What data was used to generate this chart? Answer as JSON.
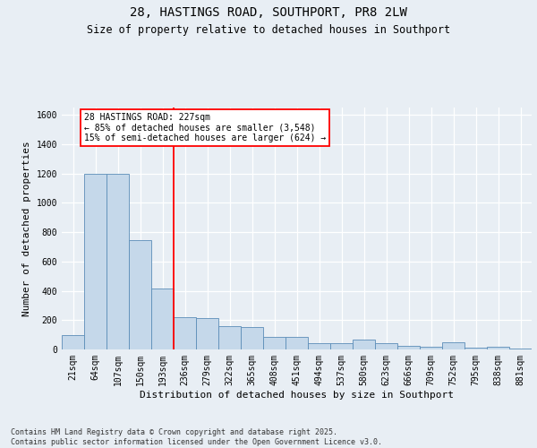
{
  "title": "28, HASTINGS ROAD, SOUTHPORT, PR8 2LW",
  "subtitle": "Size of property relative to detached houses in Southport",
  "xlabel": "Distribution of detached houses by size in Southport",
  "ylabel": "Number of detached properties",
  "categories": [
    "21sqm",
    "64sqm",
    "107sqm",
    "150sqm",
    "193sqm",
    "236sqm",
    "279sqm",
    "322sqm",
    "365sqm",
    "408sqm",
    "451sqm",
    "494sqm",
    "537sqm",
    "580sqm",
    "623sqm",
    "666sqm",
    "709sqm",
    "752sqm",
    "795sqm",
    "838sqm",
    "881sqm"
  ],
  "values": [
    100,
    1195,
    1195,
    745,
    415,
    220,
    215,
    160,
    155,
    85,
    85,
    45,
    45,
    65,
    42,
    25,
    20,
    50,
    15,
    18,
    5
  ],
  "bar_color": "#c5d8ea",
  "bar_edge_color": "#5b8db8",
  "vline_x_index": 5,
  "vline_color": "red",
  "annotation_text": "28 HASTINGS ROAD: 227sqm\n← 85% of detached houses are smaller (3,548)\n15% of semi-detached houses are larger (624) →",
  "annotation_box_facecolor": "white",
  "annotation_box_edgecolor": "red",
  "ylim": [
    0,
    1650
  ],
  "yticks": [
    0,
    200,
    400,
    600,
    800,
    1000,
    1200,
    1400,
    1600
  ],
  "footer_line1": "Contains HM Land Registry data © Crown copyright and database right 2025.",
  "footer_line2": "Contains public sector information licensed under the Open Government Licence v3.0.",
  "bg_color": "#e8eef4",
  "plot_bg_color": "#e8eef4",
  "title_fontsize": 10,
  "subtitle_fontsize": 8.5,
  "xlabel_fontsize": 8,
  "ylabel_fontsize": 8,
  "tick_fontsize": 7,
  "footer_fontsize": 6,
  "annotation_fontsize": 7
}
